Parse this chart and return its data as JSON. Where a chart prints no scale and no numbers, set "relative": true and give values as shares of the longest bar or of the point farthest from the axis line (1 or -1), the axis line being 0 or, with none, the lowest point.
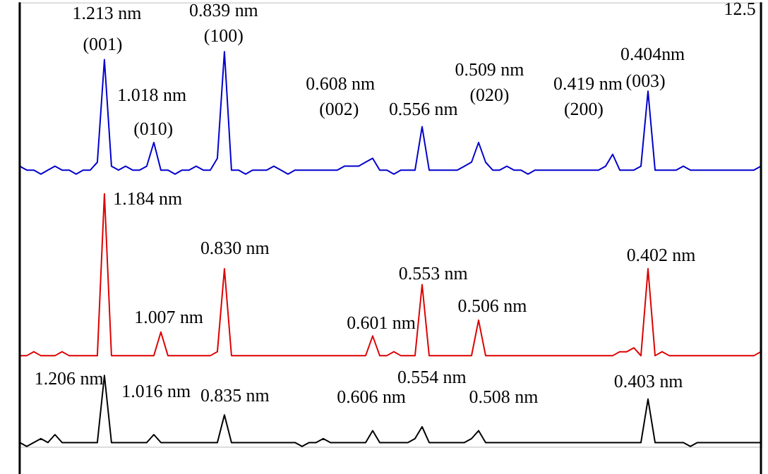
{
  "chart_data": {
    "type": "line",
    "relative": true,
    "tick_labels": false,
    "grid": false,
    "legend": false,
    "line_style": "solid",
    "marker": "none",
    "categories": [
      null,
      null,
      null,
      null,
      null,
      null,
      null,
      null,
      null,
      null,
      null,
      null,
      null,
      null,
      null,
      null,
      null,
      null,
      null,
      null,
      null,
      null,
      null,
      null,
      null,
      null,
      null,
      null,
      null,
      null,
      null,
      null,
      null,
      null,
      null,
      null,
      null,
      null,
      null,
      null,
      null,
      null,
      null,
      null,
      null,
      null,
      null,
      null,
      null,
      null,
      null,
      null,
      null,
      null,
      null,
      null,
      null,
      null,
      null,
      null,
      null,
      null,
      null,
      null,
      null,
      null,
      null,
      null,
      null,
      null,
      null,
      null,
      null,
      null,
      null,
      null,
      null,
      null,
      null,
      null,
      null,
      null,
      null,
      null,
      null,
      null,
      null,
      null,
      null,
      null,
      null,
      null,
      null,
      null,
      null,
      null,
      null,
      null,
      null,
      null,
      null,
      null,
      null,
      null,
      null,
      null
    ],
    "series": [
      {
        "color": "#0000cc",
        "values": [
          0.71,
          0.7,
          0.7,
          0.69,
          0.7,
          0.71,
          0.7,
          0.7,
          0.69,
          0.7,
          0.7,
          0.72,
          0.98,
          0.71,
          0.7,
          0.71,
          0.7,
          0.7,
          0.71,
          0.77,
          0.7,
          0.7,
          0.69,
          0.7,
          0.7,
          0.71,
          0.7,
          0.7,
          0.73,
          1.0,
          0.7,
          0.7,
          0.69,
          0.7,
          0.7,
          0.7,
          0.71,
          0.7,
          0.69,
          0.7,
          0.7,
          0.7,
          0.7,
          0.7,
          0.7,
          0.7,
          0.71,
          0.71,
          0.71,
          0.72,
          0.73,
          0.7,
          0.7,
          0.69,
          0.7,
          0.7,
          0.7,
          0.81,
          0.7,
          0.7,
          0.7,
          0.7,
          0.7,
          0.71,
          0.72,
          0.77,
          0.72,
          0.7,
          0.7,
          0.71,
          0.7,
          0.7,
          0.69,
          0.7,
          0.7,
          0.7,
          0.7,
          0.7,
          0.7,
          0.7,
          0.7,
          0.7,
          0.7,
          0.71,
          0.74,
          0.7,
          0.7,
          0.7,
          0.71,
          0.9,
          0.7,
          0.7,
          0.7,
          0.7,
          0.71,
          0.7,
          0.7,
          0.7,
          0.7,
          0.7,
          0.7,
          0.7,
          0.7,
          0.7,
          0.7,
          0.71
        ]
      },
      {
        "color": "#dd0000",
        "values": [
          0.23,
          0.23,
          0.24,
          0.23,
          0.23,
          0.23,
          0.24,
          0.23,
          0.23,
          0.23,
          0.23,
          0.23,
          0.64,
          0.23,
          0.23,
          0.23,
          0.23,
          0.23,
          0.23,
          0.23,
          0.29,
          0.23,
          0.23,
          0.23,
          0.23,
          0.23,
          0.23,
          0.23,
          0.24,
          0.45,
          0.23,
          0.23,
          0.23,
          0.23,
          0.23,
          0.23,
          0.23,
          0.23,
          0.23,
          0.23,
          0.23,
          0.23,
          0.23,
          0.23,
          0.23,
          0.23,
          0.23,
          0.23,
          0.23,
          0.23,
          0.28,
          0.23,
          0.23,
          0.24,
          0.23,
          0.23,
          0.23,
          0.41,
          0.23,
          0.23,
          0.23,
          0.23,
          0.23,
          0.23,
          0.23,
          0.32,
          0.23,
          0.23,
          0.23,
          0.23,
          0.23,
          0.23,
          0.23,
          0.23,
          0.23,
          0.23,
          0.23,
          0.23,
          0.23,
          0.23,
          0.23,
          0.23,
          0.23,
          0.23,
          0.23,
          0.24,
          0.24,
          0.25,
          0.23,
          0.45,
          0.23,
          0.24,
          0.23,
          0.23,
          0.23,
          0.23,
          0.23,
          0.23,
          0.23,
          0.23,
          0.23,
          0.23,
          0.23,
          0.23,
          0.23,
          0.24
        ]
      },
      {
        "color": "#000000",
        "values": [
          0.01,
          0.0,
          0.01,
          0.02,
          0.01,
          0.03,
          0.01,
          0.01,
          0.01,
          0.01,
          0.01,
          0.01,
          0.18,
          0.01,
          0.01,
          0.01,
          0.01,
          0.01,
          0.01,
          0.03,
          0.01,
          0.01,
          0.01,
          0.01,
          0.01,
          0.01,
          0.01,
          0.01,
          0.01,
          0.08,
          0.01,
          0.01,
          0.01,
          0.01,
          0.01,
          0.01,
          0.01,
          0.01,
          0.01,
          0.01,
          0.0,
          0.01,
          0.01,
          0.02,
          0.01,
          0.01,
          0.01,
          0.01,
          0.01,
          0.01,
          0.04,
          0.01,
          0.01,
          0.01,
          0.01,
          0.01,
          0.02,
          0.05,
          0.01,
          0.01,
          0.01,
          0.01,
          0.01,
          0.01,
          0.02,
          0.04,
          0.01,
          0.01,
          0.01,
          0.01,
          0.01,
          0.01,
          0.01,
          0.01,
          0.01,
          0.01,
          0.01,
          0.01,
          0.01,
          0.01,
          0.01,
          0.01,
          0.01,
          0.01,
          0.01,
          0.01,
          0.01,
          0.01,
          0.01,
          0.12,
          0.01,
          0.01,
          0.01,
          0.01,
          0.01,
          0.0,
          0.01,
          0.01,
          0.01,
          0.01,
          0.01,
          0.01,
          0.01,
          0.01,
          0.01,
          0.01
        ]
      }
    ],
    "annotations": [
      "1.213 nm",
      "(001)",
      "1.018 nm",
      "(010)",
      "0.839 nm",
      "(100)",
      "0.608 nm",
      "(002)",
      "0.556 nm",
      "0.509 nm",
      "(020)",
      "0.419 nm",
      "(200)",
      "0.404nm",
      "(003)",
      "1.184 nm",
      "1.007 nm",
      "0.830 nm",
      "0.601 nm",
      "0.553 nm",
      "0.506 nm",
      "0.402 nm",
      "1.206 nm",
      "1.016 nm",
      "0.835 nm",
      "0.606 nm",
      "0.554 nm",
      "0.508 nm",
      "0.403 nm",
      "12.5"
    ]
  }
}
